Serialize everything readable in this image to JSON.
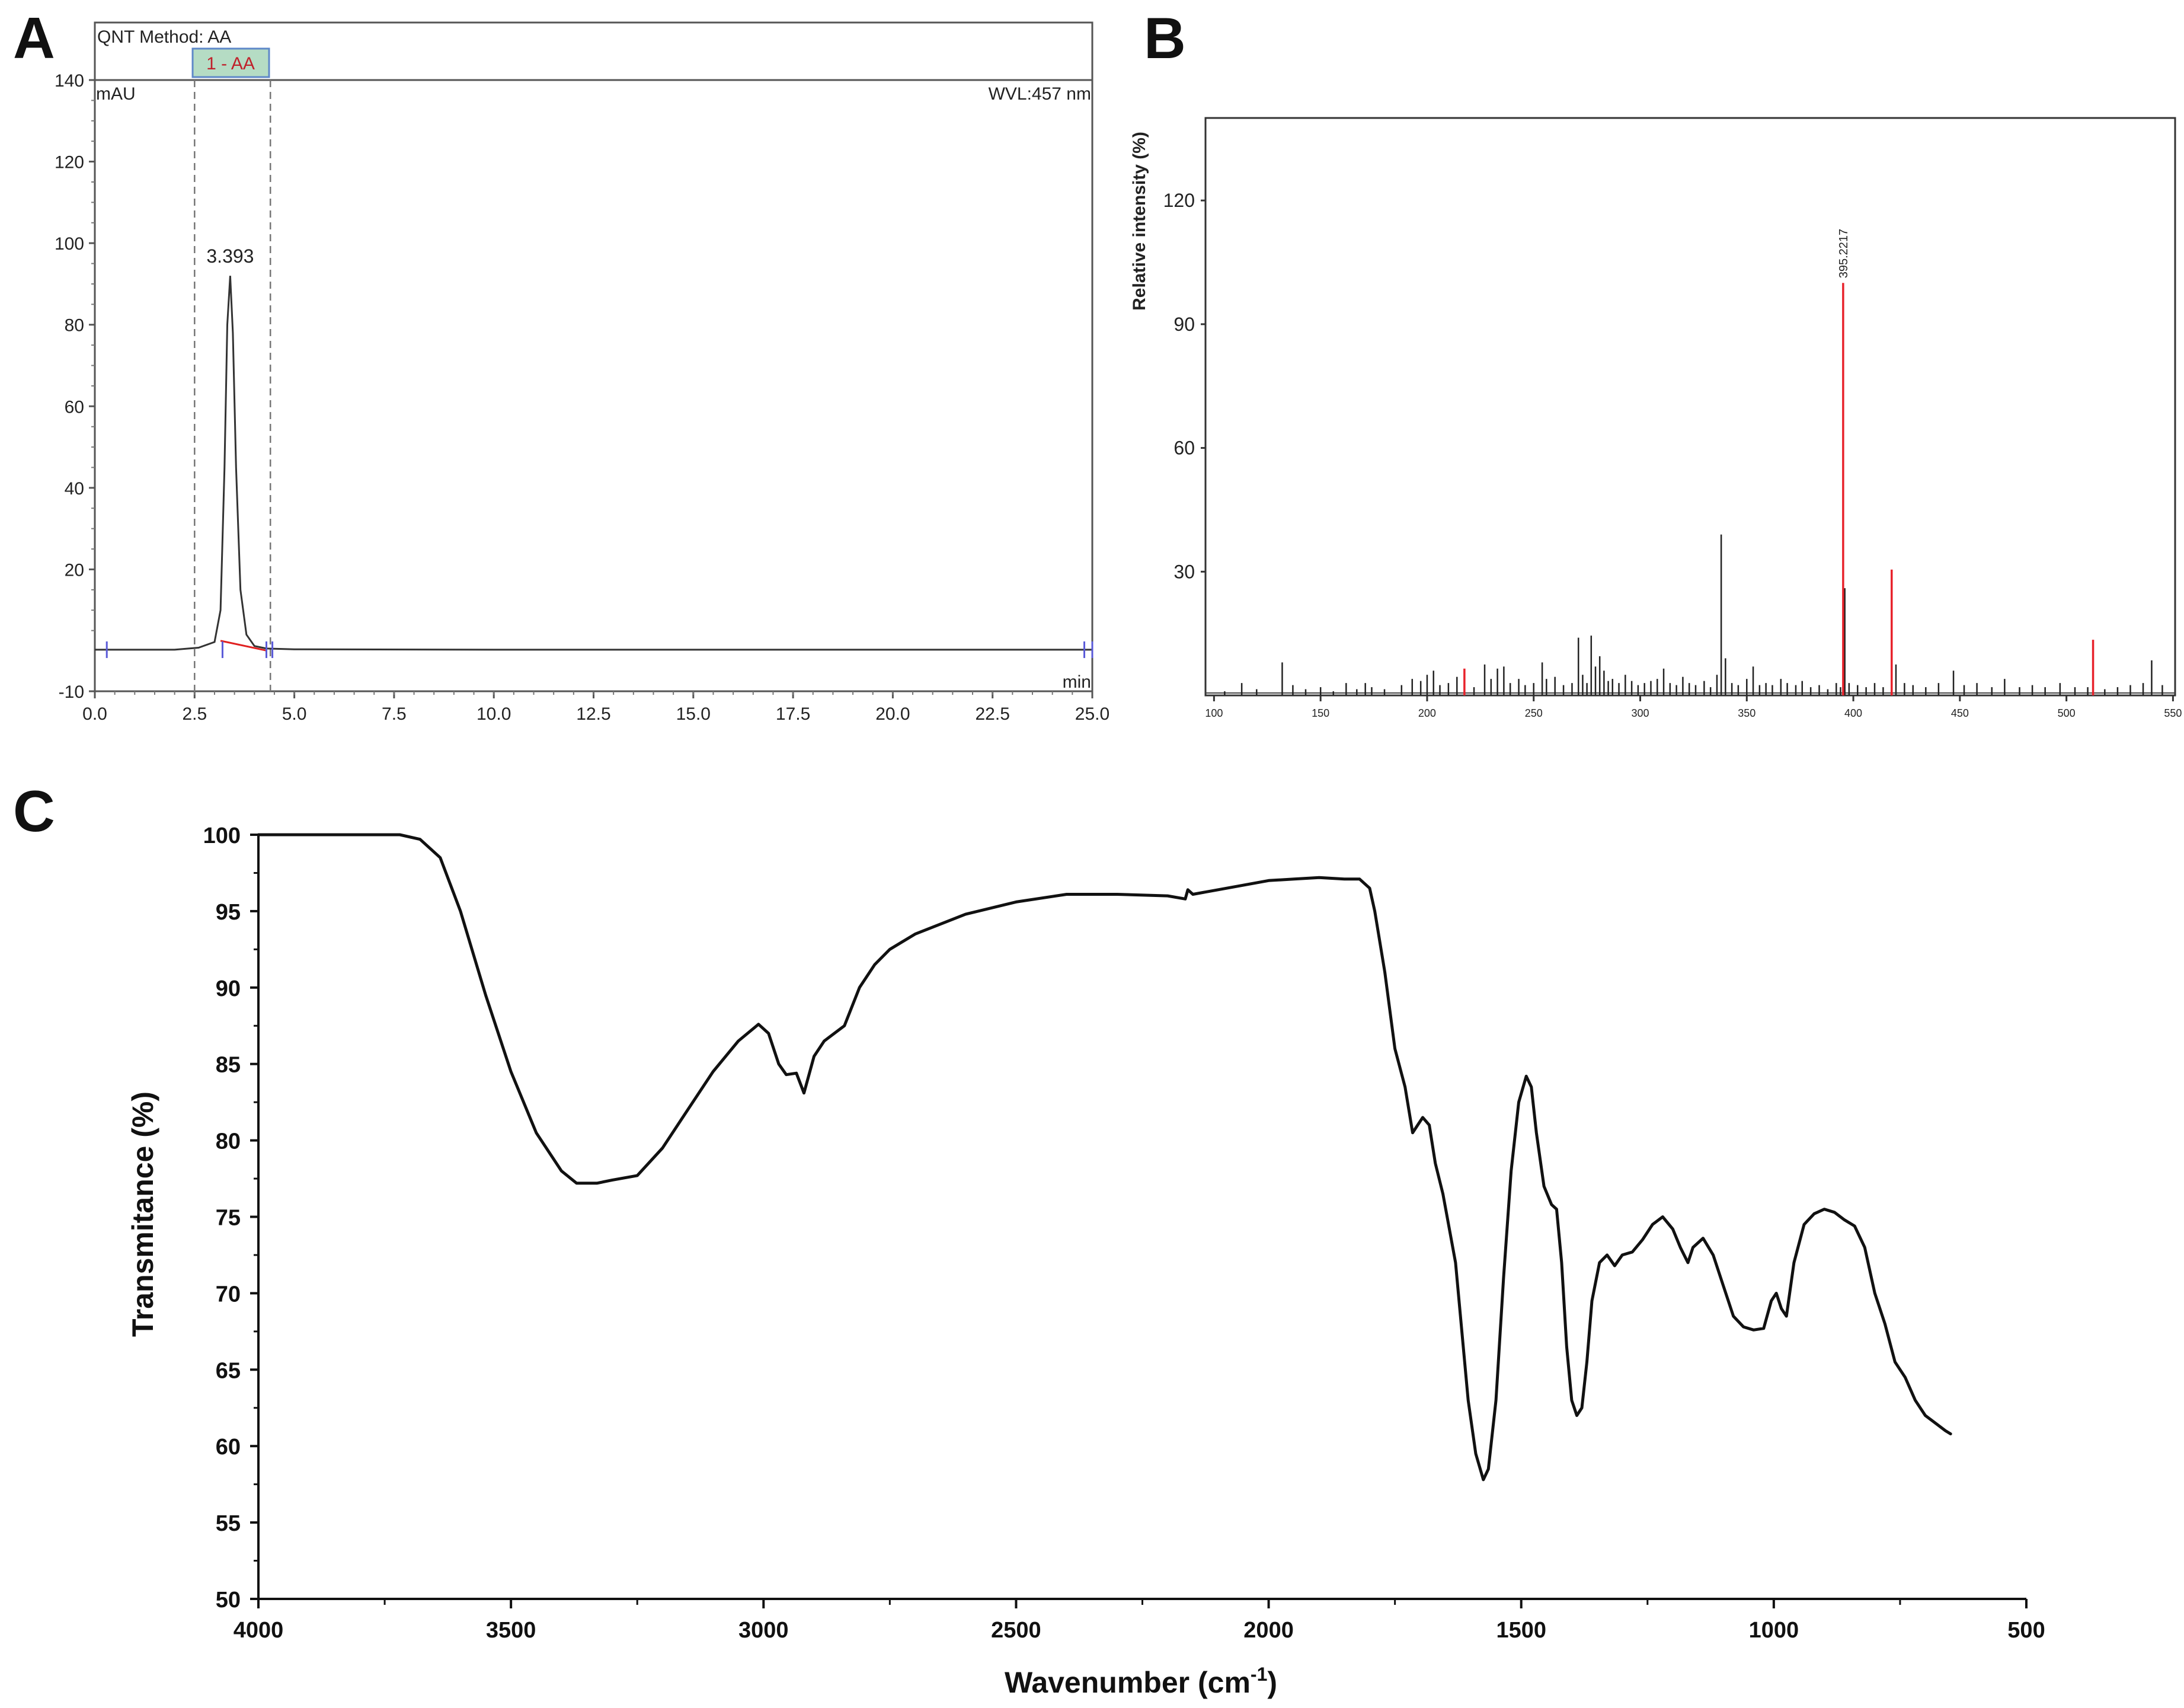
{
  "panels": {
    "A": {
      "letter": "A",
      "header": "QNT Method: AA",
      "peak_window_label": "1 - AA",
      "unit_y": "mAU",
      "wavelength": "WVL:457 nm",
      "unit_x": "min",
      "peak_label": "3.393"
    },
    "B": {
      "letter": "B",
      "ylabel": "Relative intensity (%)",
      "peak_label": "395.2217"
    },
    "C": {
      "letter": "C",
      "ylabel": "Transmitance (%)",
      "xlabel_main": "Wavenumber (cm",
      "xlabel_sup": "-1",
      "xlabel_end": ")"
    }
  },
  "colors": {
    "line": "#333333",
    "ftir_line": "#111111",
    "ms_red": "#e8222b",
    "ms_black": "#222222",
    "baseline_red": "#e02020",
    "marker_blue": "#5a5ad8",
    "window_fill": "#b5dcc4",
    "window_border": "#5e88c8",
    "window_text": "#c0202a"
  },
  "chart_data": [
    {
      "panel": "A",
      "type": "line",
      "title": "",
      "xlabel": "min",
      "ylabel": "mAU",
      "xlim": [
        0,
        25
      ],
      "ylim": [
        -10,
        140
      ],
      "xticks": [
        0.0,
        2.5,
        5.0,
        7.5,
        10.0,
        12.5,
        15.0,
        17.5,
        20.0,
        22.5,
        25.0
      ],
      "xtick_labels": [
        "0.0",
        "2.5",
        "5.0",
        "7.5",
        "10.0",
        "12.5",
        "15.0",
        "17.5",
        "20.0",
        "22.5",
        "25.0"
      ],
      "yticks": [
        -10,
        20,
        40,
        60,
        80,
        100,
        120,
        140
      ],
      "ytick_labels": [
        "-10",
        "20",
        "40",
        "60",
        "80",
        "100",
        "120",
        "140"
      ],
      "grid": false,
      "integration_window": [
        2.5,
        4.4
      ],
      "series": [
        {
          "values_x": [
            0.0,
            1.0,
            2.0,
            2.6,
            3.0,
            3.15,
            3.25,
            3.32,
            3.393,
            3.46,
            3.54,
            3.65,
            3.8,
            4.0,
            4.3,
            5.0,
            10.0,
            15.0,
            20.0,
            25.0
          ],
          "values": [
            0.3,
            0.3,
            0.3,
            0.8,
            2.2,
            10,
            45,
            80,
            92,
            78,
            45,
            15,
            4,
            1.2,
            0.6,
            0.4,
            0.3,
            0.3,
            0.3,
            0.3
          ]
        }
      ],
      "baseline": {
        "x": [
          3.15,
          4.3
        ],
        "y": [
          2.5,
          0.1
        ]
      },
      "peak": {
        "x": 3.393,
        "y": 92,
        "label": "3.393"
      },
      "markers_x": [
        0.3,
        3.2,
        4.3,
        4.45,
        24.8,
        25.0
      ]
    },
    {
      "panel": "B",
      "type": "bar",
      "title": "",
      "xlabel": "",
      "ylabel": "Relative intensity (%)",
      "xlim": [
        96,
        551
      ],
      "ylim": [
        0,
        140
      ],
      "xticks": [
        100,
        150,
        200,
        250,
        300,
        350,
        400,
        450,
        500,
        550
      ],
      "xtick_labels": [
        "100",
        "150",
        "200",
        "250",
        "300",
        "350",
        "400",
        "450",
        "500",
        "550"
      ],
      "yticks": [
        30,
        60,
        90,
        120
      ],
      "ytick_labels": [
        "30",
        "60",
        "90",
        "120"
      ],
      "grid": false,
      "series": [
        {
          "name": "",
          "color": "#e8222b",
          "x": [
            217.5,
            395.22,
            418,
            512.5
          ],
          "values": [
            6.5,
            100,
            30.5,
            13.5
          ]
        },
        {
          "name": "",
          "color": "#222222",
          "x": [
            105,
            113,
            120,
            132,
            137,
            143,
            150,
            156,
            162,
            167,
            171,
            174,
            180,
            188,
            193,
            197,
            200,
            203,
            206,
            210,
            214,
            222,
            227,
            230,
            233,
            236,
            239,
            243,
            246,
            250,
            254,
            256,
            260,
            264,
            268,
            271,
            273,
            275,
            277,
            279,
            281,
            283,
            285,
            287,
            290,
            293,
            296,
            299,
            302,
            305,
            308,
            311,
            314,
            317,
            320,
            323,
            326,
            330,
            333,
            336,
            338,
            340,
            343,
            346,
            350,
            353,
            356,
            359,
            362,
            366,
            369,
            373,
            376,
            380,
            384,
            388,
            392,
            394,
            396,
            398,
            402,
            406,
            410,
            414,
            420,
            424,
            428,
            434,
            440,
            447,
            452,
            458,
            465,
            471,
            478,
            484,
            490,
            497,
            504,
            510,
            518,
            524,
            530,
            536,
            540,
            545
          ],
          "values": [
            1,
            3,
            1.5,
            8,
            2.5,
            1.5,
            2,
            1,
            3,
            1.5,
            3,
            2,
            1.5,
            2.5,
            4,
            3.5,
            5,
            6,
            2.5,
            3,
            4.5,
            2,
            7.5,
            4,
            6.5,
            7,
            3,
            4,
            2.5,
            3,
            8,
            4,
            4.5,
            2.5,
            3,
            14,
            5,
            3,
            14.5,
            7,
            9.5,
            6,
            3.5,
            4,
            3,
            5,
            3.5,
            2.5,
            3,
            3.5,
            4,
            6.5,
            3,
            2.5,
            4.5,
            3,
            2.5,
            3.5,
            2,
            5,
            39,
            9,
            3,
            2.5,
            4,
            7,
            2.5,
            3,
            2.5,
            4,
            3,
            2.5,
            3.5,
            2,
            2.5,
            1.5,
            3,
            2,
            26,
            3,
            2.5,
            2,
            3,
            2,
            7.5,
            3,
            2.5,
            2,
            3,
            6,
            2.5,
            3,
            2,
            4,
            2,
            2.5,
            2,
            3,
            2,
            2,
            1.5,
            2,
            2.5,
            3,
            8.5,
            2.5
          ]
        }
      ],
      "peak": {
        "x": 395.22,
        "y": 100,
        "label": "395.2217"
      }
    },
    {
      "panel": "C",
      "type": "line",
      "title": "",
      "xlabel": "Wavenumber (cm-1)",
      "ylabel": "Transmitance (%)",
      "xlim": [
        4000,
        500
      ],
      "ylim": [
        50,
        100
      ],
      "xticks": [
        4000,
        3500,
        3000,
        2500,
        2000,
        1500,
        1000,
        500
      ],
      "xtick_labels": [
        "4000",
        "3500",
        "3000",
        "2500",
        "2000",
        "1500",
        "1000",
        "500"
      ],
      "yticks": [
        50,
        55,
        60,
        65,
        70,
        75,
        80,
        85,
        90,
        95,
        100
      ],
      "ytick_labels": [
        "50",
        "55",
        "60",
        "65",
        "70",
        "75",
        "80",
        "85",
        "90",
        "95",
        "100"
      ],
      "grid": false,
      "series": [
        {
          "x": [
            4000,
            3720,
            3680,
            3640,
            3600,
            3550,
            3500,
            3450,
            3400,
            3370,
            3330,
            3300,
            3250,
            3200,
            3150,
            3100,
            3050,
            3010,
            2990,
            2970,
            2955,
            2935,
            2920,
            2900,
            2880,
            2860,
            2840,
            2810,
            2780,
            2750,
            2700,
            2600,
            2500,
            2400,
            2300,
            2200,
            2165,
            2160,
            2150,
            2100,
            2050,
            2000,
            1950,
            1900,
            1850,
            1820,
            1800,
            1790,
            1770,
            1750,
            1730,
            1715,
            1705,
            1695,
            1682,
            1670,
            1655,
            1630,
            1605,
            1590,
            1575,
            1565,
            1550,
            1535,
            1520,
            1505,
            1490,
            1480,
            1470,
            1455,
            1440,
            1430,
            1420,
            1410,
            1400,
            1390,
            1380,
            1370,
            1360,
            1345,
            1330,
            1315,
            1300,
            1280,
            1260,
            1240,
            1220,
            1200,
            1185,
            1170,
            1160,
            1140,
            1120,
            1100,
            1080,
            1060,
            1040,
            1020,
            1005,
            995,
            985,
            975,
            960,
            940,
            920,
            900,
            880,
            860,
            840,
            820,
            800,
            780,
            760,
            740,
            720,
            700,
            680,
            660,
            650
          ],
          "values": [
            100,
            100,
            99.7,
            98.5,
            95,
            89.5,
            84.5,
            80.5,
            78,
            77.2,
            77.2,
            77.4,
            77.7,
            79.5,
            82,
            84.5,
            86.5,
            87.6,
            87,
            85,
            84.3,
            84.4,
            83.1,
            85.5,
            86.5,
            87,
            87.5,
            90,
            91.5,
            92.5,
            93.5,
            94.8,
            95.6,
            96.1,
            96.1,
            96,
            95.8,
            96.4,
            96.1,
            96.4,
            96.7,
            97,
            97.1,
            97.2,
            97.1,
            97.1,
            96.5,
            95,
            91,
            86,
            83.5,
            80.5,
            81,
            81.5,
            81,
            78.5,
            76.5,
            72,
            63,
            59.5,
            57.8,
            58.5,
            63,
            71,
            78,
            82.5,
            84.2,
            83.5,
            80.5,
            77,
            75.8,
            75.5,
            72,
            66.5,
            63,
            62,
            62.5,
            65.5,
            69.5,
            72,
            72.5,
            71.8,
            72.5,
            72.7,
            73.5,
            74.5,
            75,
            74.2,
            73,
            72,
            73,
            73.6,
            72.5,
            70.5,
            68.5,
            67.8,
            67.6,
            67.7,
            69.5,
            70,
            69,
            68.5,
            72,
            74.5,
            75.2,
            75.5,
            75.3,
            74.8,
            74.4,
            73,
            70,
            68,
            65.5,
            64.5,
            63,
            62,
            61.5,
            61,
            60.8
          ]
        }
      ]
    }
  ]
}
